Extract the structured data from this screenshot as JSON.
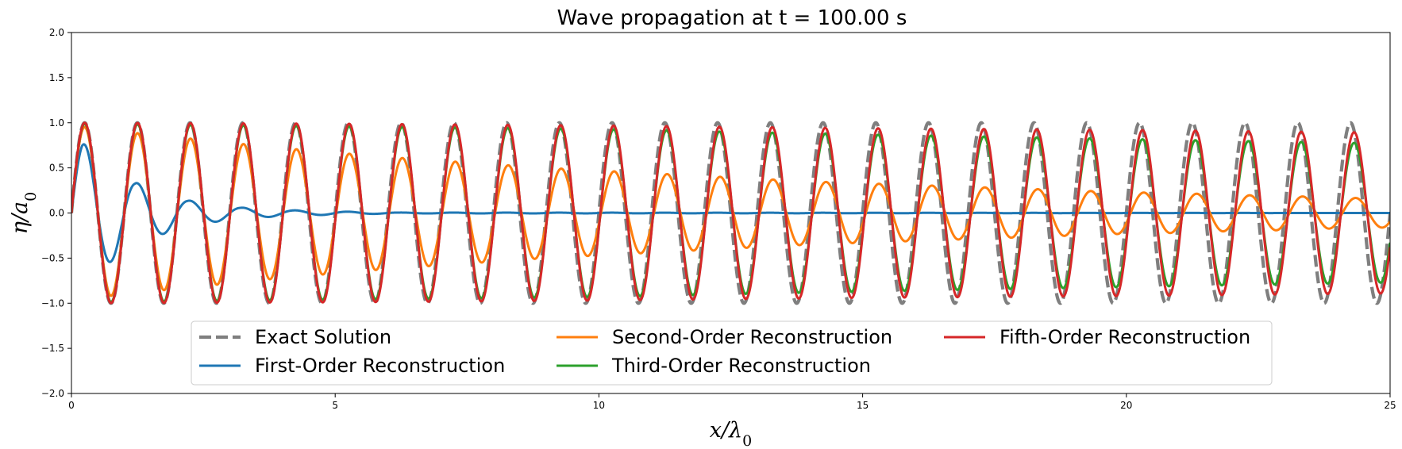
{
  "chart_data": {
    "type": "line",
    "title": "Wave propagation at t = 100.00 s",
    "xlabel": "x/λ0",
    "ylabel": "η/a0",
    "xlim": [
      0,
      25
    ],
    "ylim": [
      -2.0,
      2.0
    ],
    "x_ticks": [
      0,
      5,
      10,
      15,
      20,
      25
    ],
    "x_tick_labels": [
      "0",
      "5",
      "10",
      "15",
      "20",
      "25"
    ],
    "y_ticks": [
      2.0,
      1.5,
      1.0,
      0.5,
      0.0,
      -0.5,
      -1.0,
      -1.5,
      -2.0
    ],
    "y_tick_labels": [
      "2.0",
      "1.5",
      "1.0",
      "0.5",
      "0.0",
      "−0.5",
      "−1.0",
      "−1.5",
      "−2.0"
    ],
    "grid": false,
    "legend_position": "lower-center",
    "wavelength": 1.0,
    "phase_crest_x": 0.25,
    "series": [
      {
        "name": "Exact Solution",
        "color": "#7f7f7f",
        "dash": "dashed",
        "amplitude_x": [
          0,
          25
        ],
        "amplitude_y": [
          1.0,
          1.0
        ],
        "phase_lag_at_xmax": 0.0
      },
      {
        "name": "First-Order Reconstruction",
        "color": "#1f77b4",
        "dash": "solid",
        "amplitude_x": [
          0.2,
          1.2,
          2.2,
          3.2,
          4.2,
          5.2,
          6.2,
          25
        ],
        "amplitude_y": [
          0.78,
          0.34,
          0.14,
          0.06,
          0.03,
          0.015,
          0.005,
          0.0
        ],
        "phase_lag_at_xmax": 0.0
      },
      {
        "name": "Second-Order Reconstruction",
        "color": "#ff7f0e",
        "dash": "solid",
        "amplitude_x": [
          0,
          1,
          2,
          3,
          4,
          5,
          6,
          7,
          8,
          9,
          10,
          11,
          12,
          13,
          14,
          15,
          16,
          17,
          18,
          19,
          20,
          21,
          22,
          23,
          24,
          25
        ],
        "amplitude_y": [
          0.97,
          0.9,
          0.84,
          0.78,
          0.72,
          0.67,
          0.62,
          0.58,
          0.54,
          0.5,
          0.47,
          0.44,
          0.41,
          0.38,
          0.35,
          0.33,
          0.31,
          0.29,
          0.27,
          0.25,
          0.23,
          0.22,
          0.2,
          0.19,
          0.17,
          0.16
        ],
        "phase_lag_at_xmax": 0.1
      },
      {
        "name": "Third-Order Reconstruction",
        "color": "#2ca02c",
        "dash": "solid",
        "amplitude_x": [
          0,
          5,
          10,
          15,
          20,
          25
        ],
        "amplitude_y": [
          0.99,
          0.96,
          0.93,
          0.87,
          0.82,
          0.77
        ],
        "phase_lag_at_xmax": 0.07
      },
      {
        "name": "Fifth-Order Reconstruction",
        "color": "#d62728",
        "dash": "solid",
        "amplitude_x": [
          0,
          5,
          10,
          15,
          20,
          25
        ],
        "amplitude_y": [
          1.0,
          0.99,
          0.97,
          0.94,
          0.92,
          0.89
        ],
        "phase_lag_at_xmax": 0.07
      }
    ]
  }
}
